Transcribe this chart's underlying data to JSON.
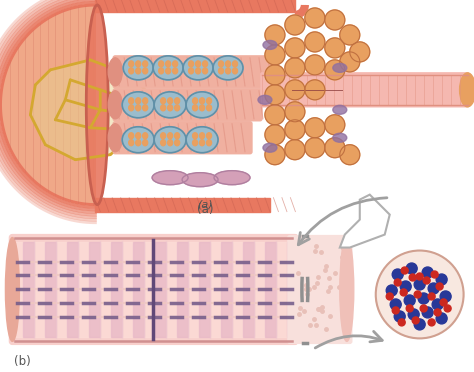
{
  "bg_color": "#ffffff",
  "fig_width": 4.74,
  "fig_height": 3.72,
  "dpi": 100,
  "label_a": "(a)",
  "label_b": "(b)",
  "outer_muscle_color": "#E87860",
  "outer_muscle_edge": "#C86050",
  "inner_fill_color": "#F0A888",
  "yellow_net_color": "#D4A830",
  "blue_cyl_color": "#9BBCCC",
  "blue_cyl_edge": "#6090A8",
  "pink_fiber_color": "#F0B0A0",
  "pink_fiber_stripe": "#E09080",
  "cross_dot_orange": "#E8A060",
  "purple_small": "#9070A0",
  "pink_nucleus": "#D4A0B8",
  "fiber_tube_color": "#F5B8B0",
  "fiber_tube_light": "#FCCCC8",
  "fiber_stripe_dark": "#C090A8",
  "fiber_stripe_purple": "#806898",
  "cross_sec_bg": "#F8E8E0",
  "dot_blue": "#283898",
  "dot_red": "#CC2820",
  "arrow_color": "#A0A0A0",
  "arrow_edge": "#888888",
  "lens_color": "#909090",
  "sarcomere_color": "#705888"
}
